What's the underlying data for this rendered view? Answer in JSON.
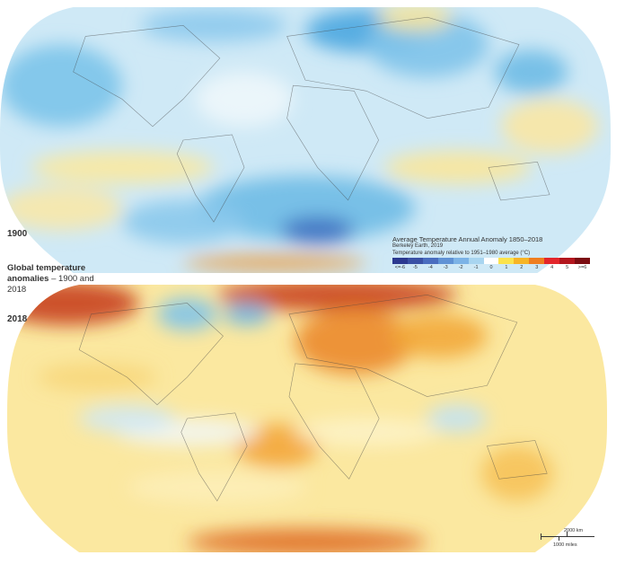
{
  "labels": {
    "map_1900": "1900",
    "map_2018": "2018"
  },
  "title": {
    "bold": "Global temperature anomalies",
    "rest": " – 1900 and 2018"
  },
  "legend": {
    "title": "Average Temperature Annual Anomaly 1850–2018",
    "source": "Berkeley Earth, 2019",
    "subtitle": "Temperature anomaly relative to 1951–1980 average (°C)",
    "ticks": [
      "<=-6",
      "-5",
      "-4",
      "-3",
      "-2",
      "-1",
      "0",
      "1",
      "2",
      "3",
      "4",
      "5",
      ">=6"
    ],
    "colors": [
      "#2b3990",
      "#3a51a5",
      "#4a6dbf",
      "#5f92d5",
      "#7cb3e6",
      "#a8d5f0",
      "#ffffff",
      "#fbe34c",
      "#f7b526",
      "#ef7e20",
      "#e3262b",
      "#b3161d",
      "#7b0c11"
    ]
  },
  "scale": {
    "km": "2000 km",
    "miles": "1000 miles"
  }
}
